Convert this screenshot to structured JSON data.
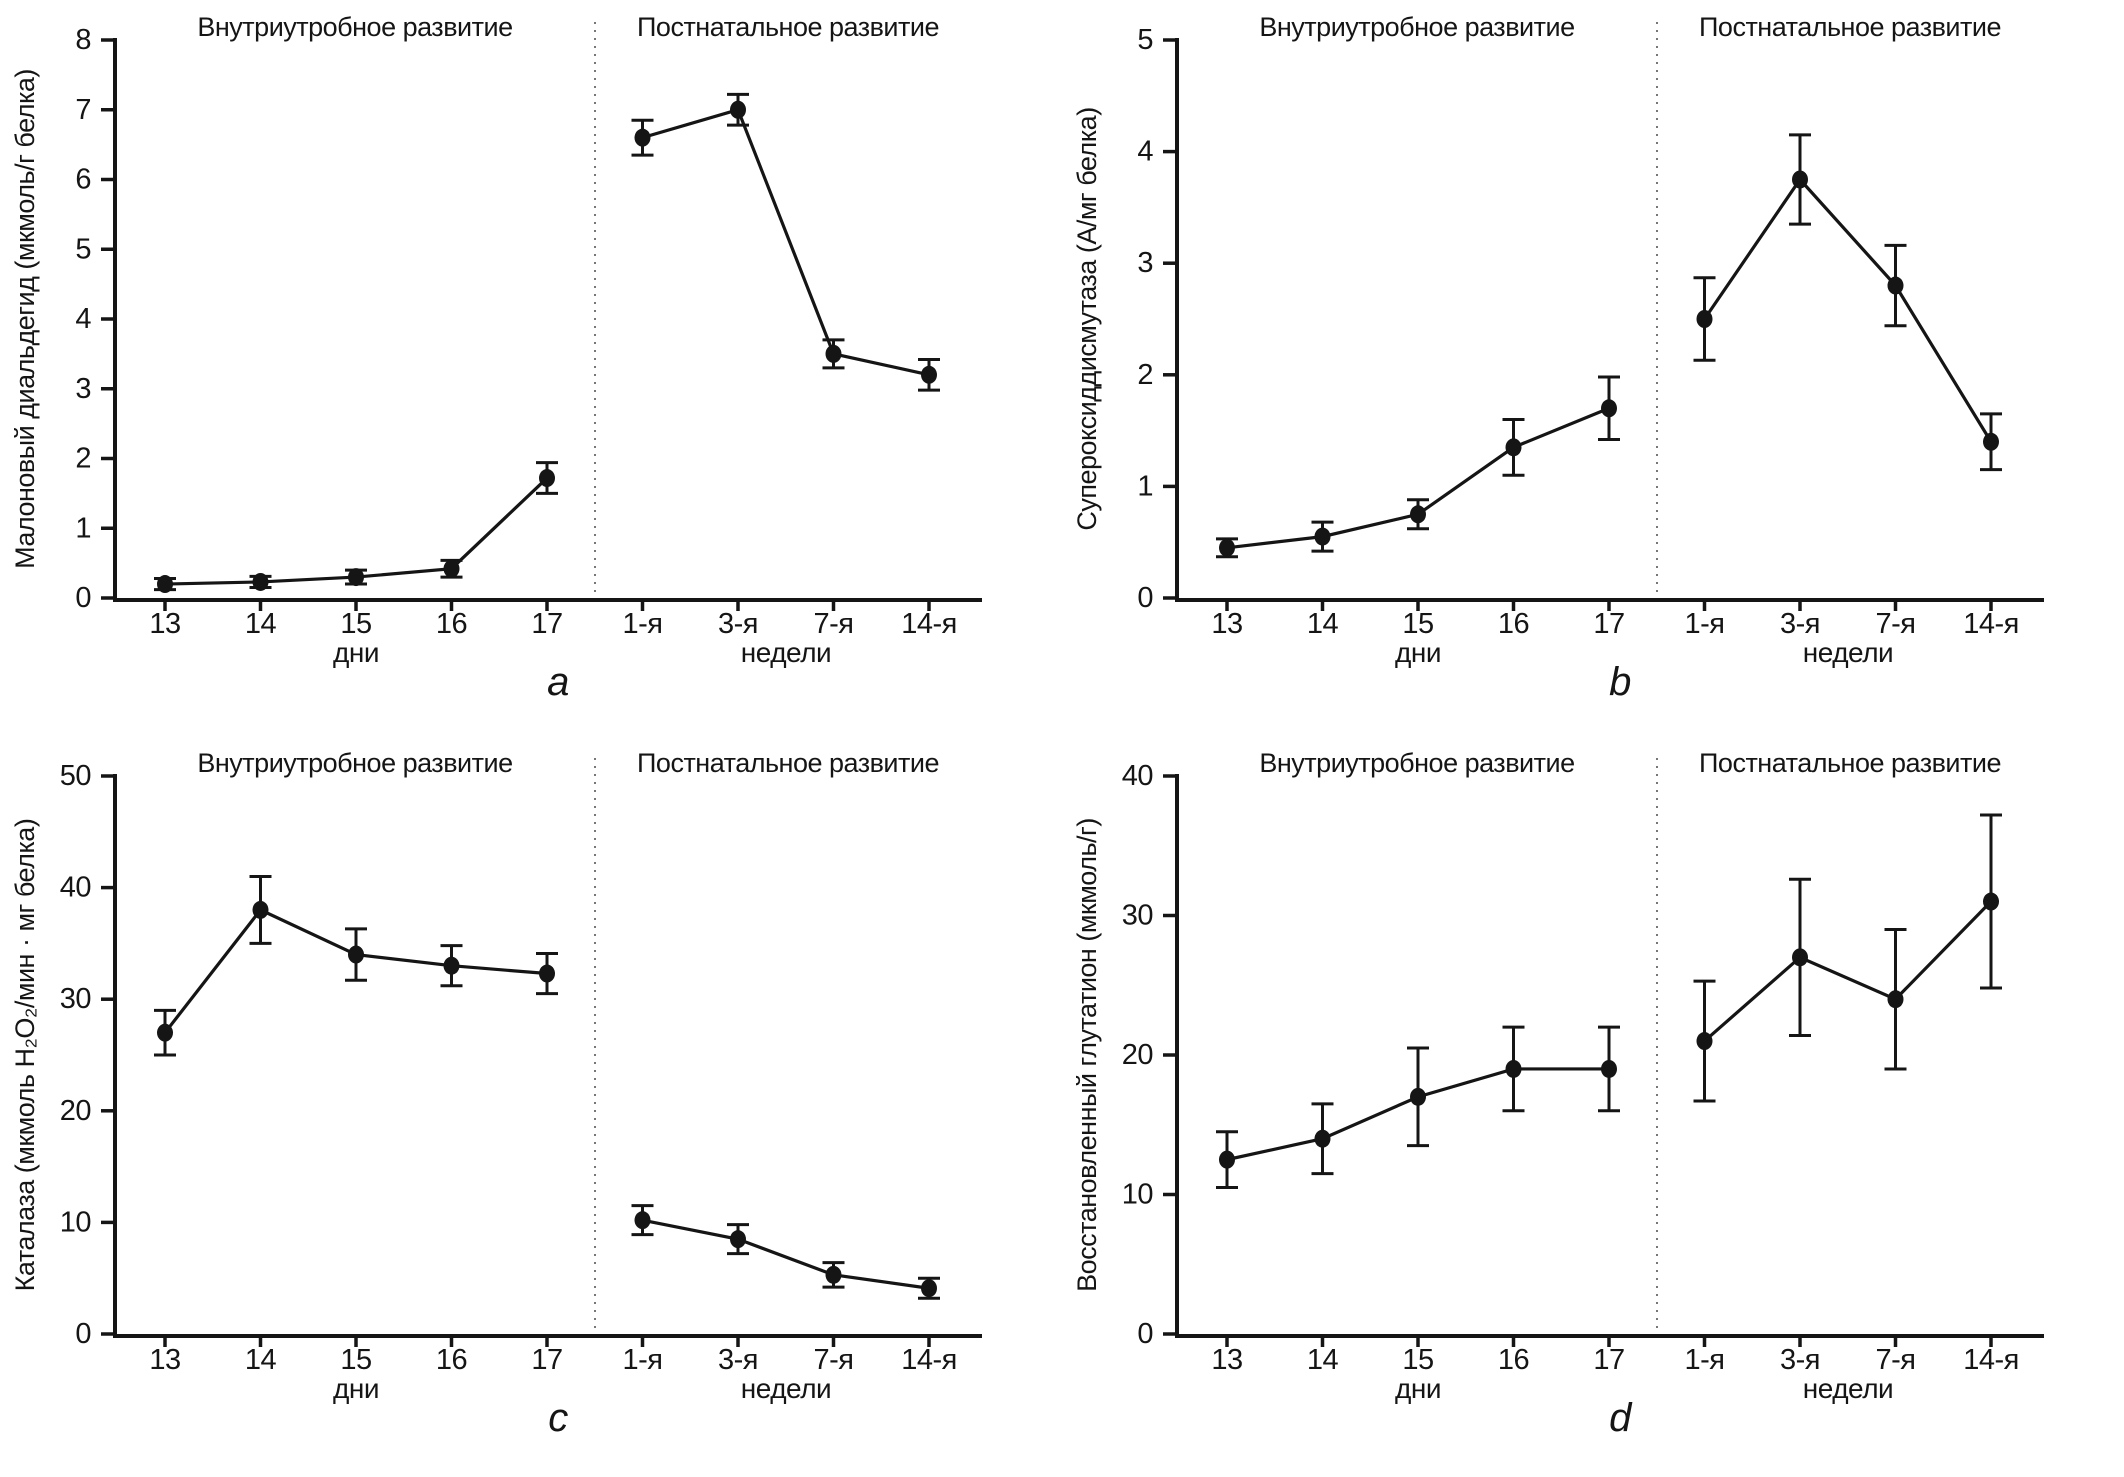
{
  "page": {
    "background": "#ffffff",
    "ink_color": "#151515",
    "divider_color": "#777777"
  },
  "shared": {
    "region_titles": {
      "left": "Внутриутробное развитие",
      "right": "Постнатальное развитие"
    },
    "x_categories": [
      "13",
      "14",
      "15",
      "16",
      "17",
      "1-я",
      "3-я",
      "7-я",
      "14-я"
    ],
    "x_group_labels": {
      "left": "дни",
      "right": "недели"
    },
    "split_after_index": 5
  },
  "chart_data": [
    {
      "type": "line",
      "letter": "a",
      "ylabel": "Малоновый диальдегид (мкмоль/г белка)",
      "ylim": [
        0,
        8
      ],
      "yticks": [
        0,
        1,
        2,
        3,
        4,
        5,
        6,
        7,
        8
      ],
      "categories": [
        "13",
        "14",
        "15",
        "16",
        "17",
        "1-я",
        "3-я",
        "7-я",
        "14-я"
      ],
      "values": [
        0.2,
        0.23,
        0.3,
        0.42,
        1.72,
        6.6,
        7.0,
        3.5,
        3.2
      ],
      "errors": [
        0.08,
        0.08,
        0.1,
        0.12,
        0.22,
        0.25,
        0.22,
        0.2,
        0.22
      ]
    },
    {
      "type": "line",
      "letter": "b",
      "ylabel": "Супероксиддисмутаза (А/мг белка)",
      "ylim": [
        0,
        5
      ],
      "yticks": [
        0,
        1,
        2,
        3,
        4,
        5
      ],
      "categories": [
        "13",
        "14",
        "15",
        "16",
        "17",
        "1-я",
        "3-я",
        "7-я",
        "14-я"
      ],
      "values": [
        0.45,
        0.55,
        0.75,
        1.35,
        1.7,
        2.5,
        3.75,
        2.8,
        1.4
      ],
      "errors": [
        0.08,
        0.13,
        0.13,
        0.25,
        0.28,
        0.37,
        0.4,
        0.36,
        0.25
      ]
    },
    {
      "type": "line",
      "letter": "c",
      "ylabel": "Каталаза (мкмоль Н₂О₂/мин · мг белка)",
      "ylim": [
        0,
        50
      ],
      "yticks": [
        0,
        10,
        20,
        30,
        40,
        50
      ],
      "categories": [
        "13",
        "14",
        "15",
        "16",
        "17",
        "1-я",
        "3-я",
        "7-я",
        "14-я"
      ],
      "values": [
        27,
        38,
        34,
        33,
        32.3,
        10.2,
        8.5,
        5.3,
        4.1
      ],
      "errors": [
        2,
        3,
        2.3,
        1.8,
        1.8,
        1.3,
        1.3,
        1.1,
        0.9
      ]
    },
    {
      "type": "line",
      "letter": "d",
      "ylabel": "Восстановленный глутатион (мкмоль/г)",
      "ylim": [
        0,
        40
      ],
      "yticks": [
        0,
        10,
        20,
        30,
        40
      ],
      "categories": [
        "13",
        "14",
        "15",
        "16",
        "17",
        "1-я",
        "3-я",
        "7-я",
        "14-я"
      ],
      "values": [
        12.5,
        14,
        17,
        19,
        19,
        21,
        27,
        24,
        31
      ],
      "errors": [
        2,
        2.5,
        3.5,
        3,
        3,
        4.3,
        5.6,
        5,
        6.2
      ]
    }
  ]
}
